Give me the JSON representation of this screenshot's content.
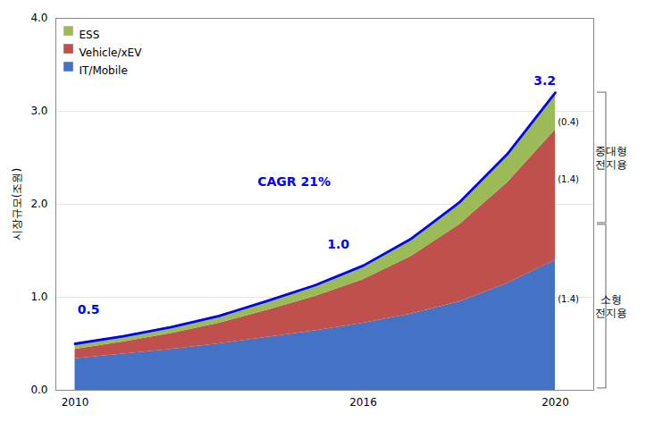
{
  "chart_data": {
    "type": "area",
    "stacked": true,
    "x": [
      2010,
      2011,
      2012,
      2013,
      2014,
      2015,
      2016,
      2017,
      2018,
      2019,
      2020
    ],
    "series": [
      {
        "name": "IT/Mobile",
        "color": "#4472C4",
        "values": [
          0.34,
          0.39,
          0.44,
          0.5,
          0.57,
          0.64,
          0.72,
          0.82,
          0.95,
          1.15,
          1.4
        ]
      },
      {
        "name": "Vehicle/xEV",
        "color": "#C0504D",
        "values": [
          0.1,
          0.13,
          0.17,
          0.22,
          0.29,
          0.37,
          0.47,
          0.62,
          0.83,
          1.08,
          1.4
        ]
      },
      {
        "name": "ESS",
        "color": "#9BBB59",
        "values": [
          0.05,
          0.06,
          0.07,
          0.08,
          0.1,
          0.12,
          0.15,
          0.19,
          0.24,
          0.31,
          0.4
        ]
      },
      {
        "type": "line",
        "color": "#0000FF",
        "values": [
          0.5,
          0.58,
          0.68,
          0.8,
          0.96,
          1.13,
          1.34,
          1.63,
          2.02,
          2.54,
          3.2
        ]
      }
    ],
    "ylabel": "시장규모(조원)",
    "xlim": [
      2009.6,
      2020.8
    ],
    "ylim": [
      0.0,
      4.0
    ],
    "xticks": [
      2010,
      2016,
      2020
    ],
    "yticks": [
      {
        "value": 0.0,
        "label": "0.0"
      },
      {
        "value": 1.0,
        "label": "1.0"
      },
      {
        "value": 2.0,
        "label": "2.0"
      },
      {
        "value": 3.0,
        "label": "3.0"
      },
      {
        "value": 4.0,
        "label": "4.0"
      }
    ],
    "grid": true,
    "legend": "upper left",
    "annotations": [
      {
        "text": "0.5",
        "x": 2010.05,
        "y": 0.82,
        "color": "#0000FF"
      },
      {
        "text": "1.0",
        "x": 2015.25,
        "y": 1.52,
        "color": "#0000FF"
      },
      {
        "text": "CAGR 21%",
        "x": 2013.8,
        "y": 2.2,
        "color": "#0000FF"
      },
      {
        "text": "3.2",
        "x": 2019.55,
        "y": 3.28,
        "color": "#0000FF"
      },
      {
        "text": "(0.4)",
        "x": 2020.05,
        "y": 2.88,
        "color": "black"
      },
      {
        "text": "(1.4)",
        "x": 2020.05,
        "y": 2.27,
        "color": "black"
      },
      {
        "text": "(1.4)",
        "x": 2020.05,
        "y": 0.98,
        "color": "black"
      }
    ],
    "brackets": [
      {
        "text": "중대형\n전지용",
        "y_hi": 3.2,
        "y_lo": 1.8
      },
      {
        "text": "소형\n전지용",
        "y_hi": 1.78,
        "y_lo": 0.02
      }
    ]
  }
}
